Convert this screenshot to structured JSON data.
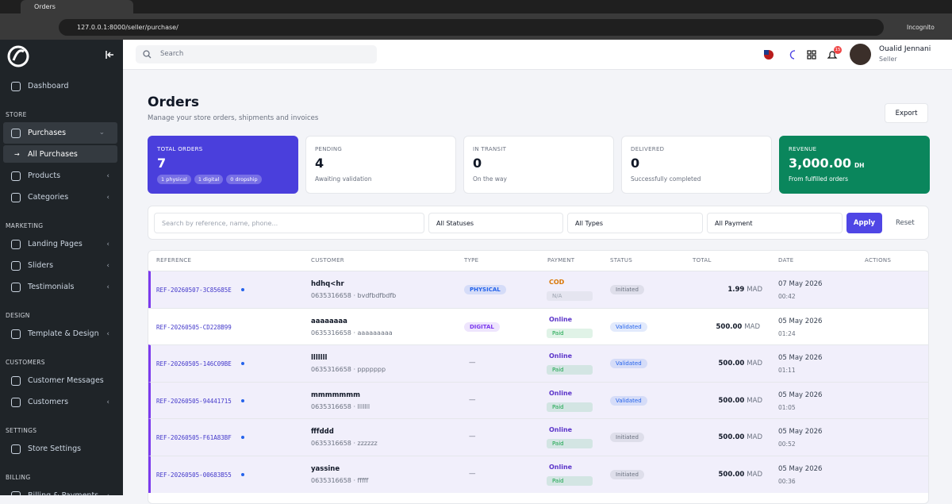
{
  "browser": {
    "tab_title": "Orders",
    "url": "127.0.0.1:8000/seller/purchase/",
    "mode": "Incognito"
  },
  "sidebar": {
    "sections": [
      {
        "items": [
          {
            "label": "Dashboard"
          }
        ]
      },
      {
        "title": "STORE",
        "items": [
          {
            "label": "Purchases",
            "active": true,
            "expanded": true,
            "children": [
              "All Purchases"
            ]
          },
          {
            "label": "Products",
            "submenu": true
          },
          {
            "label": "Categories",
            "submenu": true
          }
        ]
      },
      {
        "title": "MARKETING",
        "items": [
          {
            "label": "Landing Pages",
            "submenu": true
          },
          {
            "label": "Sliders",
            "submenu": true
          },
          {
            "label": "Testimonials",
            "submenu": true
          }
        ]
      },
      {
        "title": "DESIGN",
        "items": [
          {
            "label": "Template & Design",
            "submenu": true
          }
        ]
      },
      {
        "title": "CUSTOMERS",
        "items": [
          {
            "label": "Customer Messages"
          },
          {
            "label": "Customers",
            "submenu": true
          }
        ]
      },
      {
        "title": "SETTINGS",
        "items": [
          {
            "label": "Store Settings"
          }
        ]
      },
      {
        "title": "BILLING",
        "items": [
          {
            "label": "Billing & Payments",
            "submenu": true
          }
        ]
      }
    ]
  },
  "topbar": {
    "search_placeholder": "Search",
    "notification_count": "15",
    "user_name": "Oualid Jennani",
    "user_role": "Seller"
  },
  "header": {
    "title": "Orders",
    "subtitle": "Manage your store orders, shipments and invoices",
    "export": "Export"
  },
  "stats": [
    {
      "label": "TOTAL ORDERS",
      "value": "7",
      "tags": [
        "1 physical",
        "1 digital",
        "0 dropship"
      ],
      "color": "#4a3fdc"
    },
    {
      "label": "PENDING",
      "value": "4",
      "note": "Awaiting validation"
    },
    {
      "label": "IN TRANSIT",
      "value": "0",
      "note": "On the way"
    },
    {
      "label": "DELIVERED",
      "value": "0",
      "note": "Successfully completed"
    },
    {
      "label": "REVENUE",
      "value": "3,000.00",
      "unit": "DH",
      "note": "From fulfilled orders",
      "color": "#0a865c"
    }
  ],
  "filters": {
    "search_placeholder": "Search by reference, name, phone...",
    "status": "All Statuses",
    "type": "All Types",
    "payment": "All Payment",
    "apply": "Apply",
    "reset": "Reset"
  },
  "table": {
    "columns": [
      "REFERENCE",
      "CUSTOMER",
      "TYPE",
      "PAYMENT",
      "STATUS",
      "TOTAL",
      "DATE",
      "ACTIONS"
    ],
    "rows": [
      {
        "reference": "REF-20260507-3C85685E",
        "marked": true,
        "highlighted": true,
        "customer": "hdhq<hr",
        "contact": "0635316658 · bvdfbdfbdfb",
        "type": "PHYSICAL",
        "type_color": "#2563eb",
        "payment_method": "COD",
        "payment_method_color": "#d97706",
        "payment_status": "N/A",
        "payment_status_color": "#9ca3af",
        "status": "Initiated",
        "status_color": "#6b7280",
        "total": "1.99",
        "currency": "MAD",
        "date": "07 May 2026",
        "time": "00:42"
      },
      {
        "reference": "REF-20260505-CD228B99",
        "marked": false,
        "highlighted": false,
        "customer": "aaaaaaaa",
        "contact": "0635316658 · aaaaaaaaa",
        "type": "DIGITAL",
        "type_color": "#7c3aed",
        "payment_method": "Online",
        "payment_method_color": "#5b34c9",
        "payment_status": "Paid",
        "payment_status_color": "#16a34a",
        "status": "Validated",
        "status_color": "#2563eb",
        "total": "500.00",
        "currency": "MAD",
        "date": "05 May 2026",
        "time": "01:24"
      },
      {
        "reference": "REF-20260505-146C09BE",
        "marked": true,
        "highlighted": true,
        "customer": "lllllll",
        "contact": "0635316658 · ppppppp",
        "type": "—",
        "payment_method": "Online",
        "payment_method_color": "#5b34c9",
        "payment_status": "Paid",
        "payment_status_color": "#16a34a",
        "status": "Validated",
        "status_color": "#2563eb",
        "total": "500.00",
        "currency": "MAD",
        "date": "05 May 2026",
        "time": "01:11"
      },
      {
        "reference": "REF-20260505-94441715",
        "marked": true,
        "highlighted": true,
        "customer": "mmmmmmm",
        "contact": "0635316658 · lllllll",
        "type": "—",
        "payment_method": "Online",
        "payment_method_color": "#5b34c9",
        "payment_status": "Paid",
        "payment_status_color": "#16a34a",
        "status": "Validated",
        "status_color": "#2563eb",
        "total": "500.00",
        "currency": "MAD",
        "date": "05 May 2026",
        "time": "01:05"
      },
      {
        "reference": "REF-20260505-F61A83BF",
        "marked": true,
        "highlighted": true,
        "customer": "fffddd",
        "contact": "0635316658 · zzzzzz",
        "type": "—",
        "payment_method": "Online",
        "payment_method_color": "#5b34c9",
        "payment_status": "Paid",
        "payment_status_color": "#16a34a",
        "status": "Initiated",
        "status_color": "#6b7280",
        "total": "500.00",
        "currency": "MAD",
        "date": "05 May 2026",
        "time": "00:52"
      },
      {
        "reference": "REF-20260505-00683B55",
        "marked": true,
        "highlighted": true,
        "customer": "yassine",
        "contact": "0635316658 · fffff",
        "type": "—",
        "payment_method": "Online",
        "payment_method_color": "#5b34c9",
        "payment_status": "Paid",
        "payment_status_color": "#16a34a",
        "status": "Initiated",
        "status_color": "#6b7280",
        "total": "500.00",
        "currency": "MAD",
        "date": "05 May 2026",
        "time": "00:36"
      }
    ]
  }
}
